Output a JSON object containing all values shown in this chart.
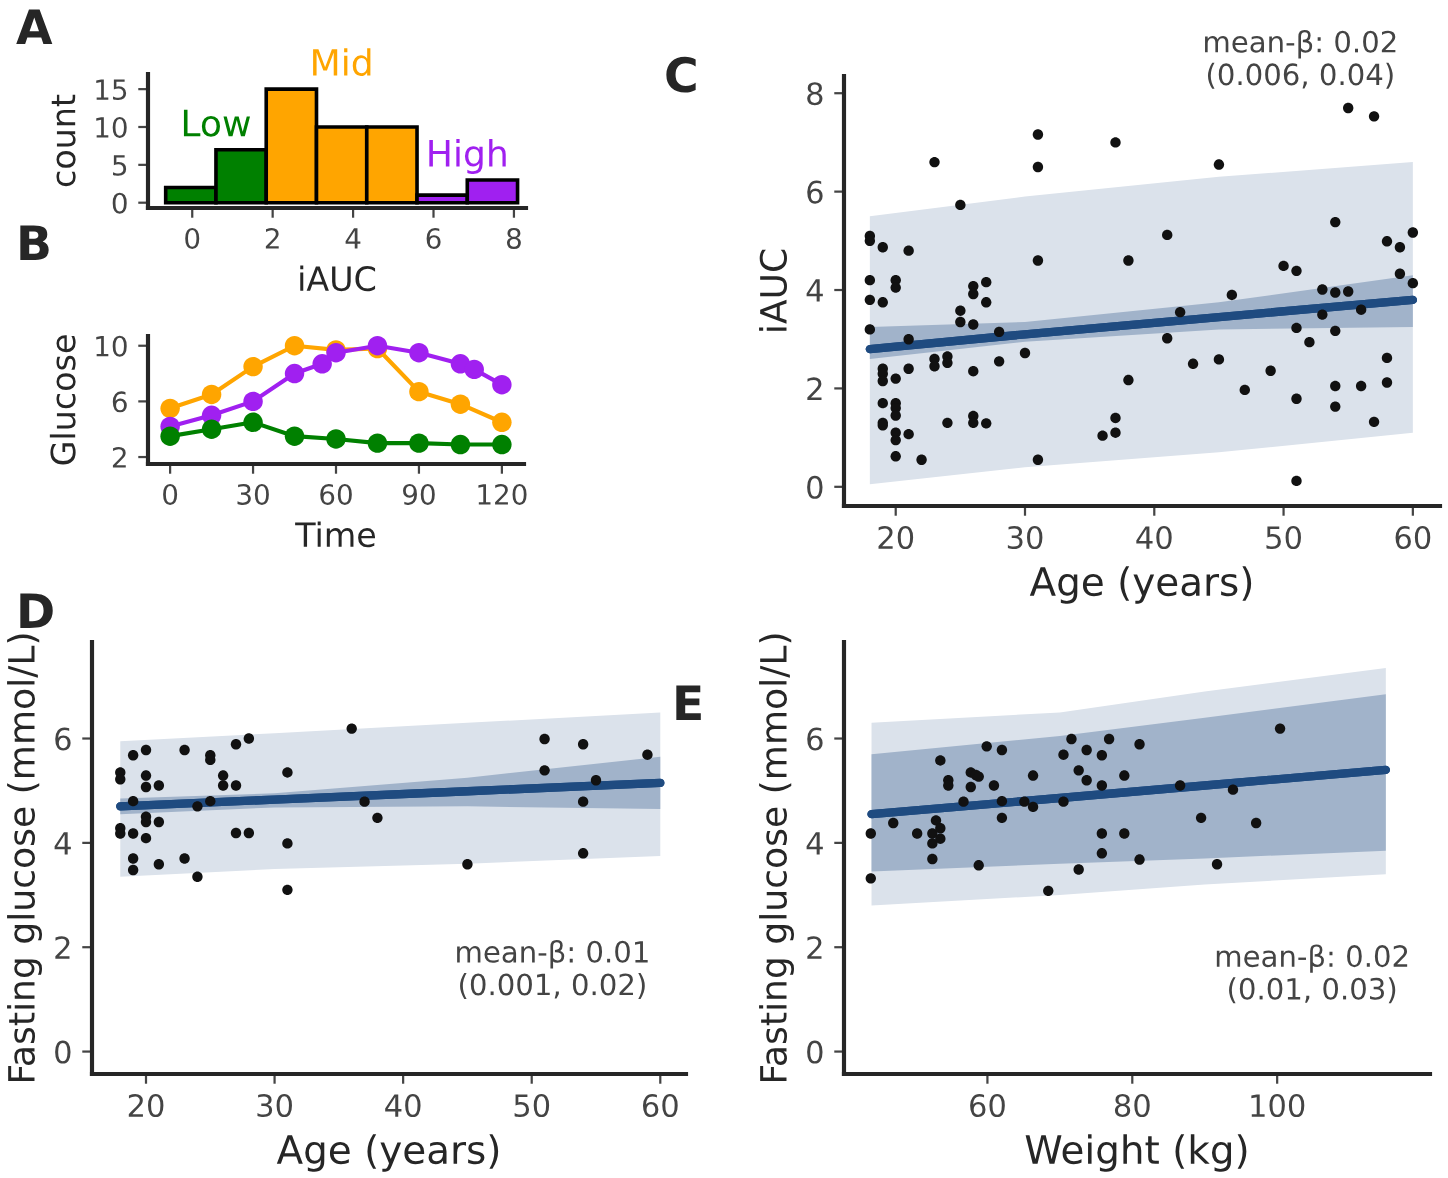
{
  "chart_data": [
    {
      "type": "histogram",
      "title": "A",
      "xlabel": "iAUC",
      "ylabel": "count",
      "bins": [
        -0.66,
        0.59,
        1.84,
        3.09,
        4.34,
        5.59,
        6.84,
        8.09
      ],
      "series": [
        {
          "name": "Low",
          "color": "#008000",
          "values": [
            2,
            7,
            null,
            null,
            null,
            null,
            null
          ]
        },
        {
          "name": "Mid",
          "color": "#FFA500",
          "values": [
            null,
            null,
            15,
            10,
            10,
            null,
            null
          ]
        },
        {
          "name": "High",
          "color": "#A020F0",
          "values": [
            null,
            null,
            null,
            null,
            null,
            1,
            3
          ]
        }
      ],
      "xlim": [
        -1.1,
        8.3
      ],
      "xticks": [
        0,
        2,
        4,
        6,
        8
      ],
      "ylim": [
        -0.7,
        17
      ],
      "yticks": [
        0,
        5,
        10,
        15
      ]
    },
    {
      "type": "line",
      "title": "B",
      "xlabel": "Time",
      "ylabel": "Glucose",
      "marker": "circle",
      "series": [
        {
          "color": "#FFA500",
          "x": [
            0,
            15,
            30,
            45,
            60,
            75,
            90,
            105,
            120
          ],
          "values": [
            5.5,
            6.5,
            8.5,
            10,
            9.7,
            9.8,
            6.7,
            5.8,
            4.5
          ]
        },
        {
          "color": "#A020F0",
          "x": [
            0,
            15,
            30,
            45,
            55,
            60,
            75,
            90,
            105,
            110,
            120
          ],
          "values": [
            4.2,
            5,
            6,
            8,
            8.7,
            9.5,
            10,
            9.5,
            8.7,
            8.3,
            7.2
          ]
        },
        {
          "color": "#008000",
          "x": [
            0,
            15,
            30,
            45,
            60,
            75,
            90,
            105,
            120
          ],
          "values": [
            3.5,
            4,
            4.5,
            3.5,
            3.3,
            3,
            3,
            2.9,
            2.9
          ]
        }
      ],
      "xlim": [
        -8,
        128
      ],
      "xticks": [
        0,
        30,
        60,
        90,
        120
      ],
      "ylim": [
        1.5,
        10.7
      ],
      "yticks": [
        2,
        6,
        10
      ]
    },
    {
      "type": "scatter",
      "title": "C",
      "xlabel": "Age (years)",
      "ylabel": "iAUC",
      "annotations": [
        "mean-β: 0.02\n(0.006, 0.04)"
      ],
      "series": [
        {
          "type": "line",
          "color": "#1f4b80",
          "x": [
            18,
            30,
            45,
            60
          ],
          "values": [
            2.8,
            3.1,
            3.45,
            3.8
          ],
          "lower": [
            0.05,
            0.4,
            0.7,
            1.1
          ],
          "upper": [
            5.5,
            5.9,
            6.3,
            6.6
          ]
        },
        {
          "type": "line",
          "color": "#1f4b80",
          "x": [
            18,
            30,
            45,
            60
          ],
          "values": [
            2.8,
            3.1,
            3.45,
            3.8
          ],
          "lower": [
            2.6,
            2.95,
            3.2,
            3.25
          ],
          "upper": [
            3.25,
            3.35,
            3.75,
            4.3
          ]
        },
        {
          "type": "scatter",
          "color": "#111111",
          "x": [
            18,
            18,
            18,
            18,
            18,
            19,
            19,
            19,
            19,
            19,
            19,
            19,
            19,
            20,
            20,
            20,
            20,
            20,
            20,
            20,
            20,
            20,
            21,
            21,
            21,
            21,
            22,
            23,
            23,
            23,
            24,
            24,
            24,
            25,
            25,
            25,
            26,
            26,
            26,
            26,
            26,
            26,
            27,
            27,
            27,
            28,
            28,
            30,
            31,
            31,
            31,
            31,
            36,
            37,
            37,
            37,
            38,
            38,
            41,
            41,
            42,
            43,
            45,
            45,
            46,
            47,
            49,
            50,
            51,
            51,
            51,
            51,
            52,
            53,
            53,
            54,
            54,
            54,
            54,
            54,
            55,
            55,
            56,
            56,
            57,
            57,
            58,
            58,
            58,
            59,
            59,
            60,
            60
          ],
          "values": [
            5.1,
            5.0,
            4.2,
            3.8,
            3.2,
            4.87,
            3.75,
            2.4,
            2.3,
            2.15,
            1.7,
            1.3,
            1.25,
            4.2,
            4.05,
            2.2,
            1.7,
            1.6,
            1.45,
            1.1,
            0.95,
            0.62,
            4.8,
            3.0,
            2.4,
            1.07,
            0.55,
            6.6,
            2.6,
            2.45,
            2.65,
            2.52,
            1.3,
            5.73,
            3.58,
            3.35,
            4.08,
            3.92,
            3.3,
            2.35,
            1.44,
            1.3,
            4.16,
            3.75,
            1.29,
            3.15,
            2.55,
            2.72,
            7.16,
            6.5,
            4.6,
            0.55,
            1.04,
            7.0,
            1.4,
            1.1,
            4.6,
            2.17,
            5.12,
            3.02,
            3.55,
            2.5,
            6.55,
            2.59,
            3.9,
            1.97,
            2.36,
            4.49,
            4.39,
            3.23,
            1.79,
            0.12,
            2.94,
            4.01,
            3.5,
            5.38,
            3.95,
            3.17,
            2.05,
            1.63,
            7.7,
            3.97,
            3.6,
            2.05,
            7.53,
            1.32,
            4.99,
            2.62,
            2.12,
            4.87,
            4.33,
            5.17,
            4.14
          ]
        }
      ],
      "xlim": [
        16,
        62.1
      ],
      "xticks": [
        20,
        30,
        40,
        50,
        60
      ],
      "ylim": [
        -0.39,
        8.35
      ],
      "yticks": [
        0,
        2,
        4,
        6,
        8
      ]
    },
    {
      "type": "scatter",
      "title": "D",
      "xlabel": "Age (years)",
      "ylabel": "Fasting glucose (mmol/L)",
      "annotations": [
        "mean-β: 0.01\n(0.001, 0.02)"
      ],
      "series": [
        {
          "type": "line",
          "color": "#1f4b80",
          "x": [
            18,
            30,
            45,
            60
          ],
          "values": [
            4.7,
            4.83,
            4.99,
            5.15
          ],
          "lower": [
            3.35,
            3.5,
            3.6,
            3.75
          ],
          "upper": [
            5.95,
            6.1,
            6.3,
            6.5
          ]
        },
        {
          "type": "line",
          "color": "#1f4b80",
          "x": [
            18,
            30,
            45,
            60
          ],
          "values": [
            4.7,
            4.83,
            4.99,
            5.15
          ],
          "lower": [
            4.55,
            4.68,
            4.7,
            4.65
          ],
          "upper": [
            4.85,
            4.95,
            5.25,
            5.65
          ]
        },
        {
          "type": "scatter",
          "color": "#111111",
          "x": [
            18,
            18,
            18,
            18,
            19,
            19,
            19,
            19,
            19,
            20,
            20,
            20,
            20,
            20,
            20,
            21,
            21,
            21,
            23,
            23,
            24,
            24,
            25,
            25,
            25,
            26,
            26,
            27,
            27,
            27,
            28,
            28,
            31,
            31,
            31,
            36,
            37,
            38,
            45,
            51,
            51,
            54,
            54,
            54,
            55,
            59
          ],
          "values": [
            5.35,
            5.22,
            4.28,
            4.18,
            5.68,
            4.8,
            4.18,
            3.7,
            3.48,
            5.78,
            5.29,
            5.07,
            4.5,
            4.4,
            4.09,
            5.1,
            4.4,
            3.59,
            5.78,
            3.7,
            4.7,
            3.35,
            5.68,
            5.59,
            4.8,
            5.29,
            5.1,
            5.89,
            5.1,
            4.19,
            6.0,
            4.19,
            5.35,
            3.99,
            3.1,
            6.19,
            4.79,
            4.48,
            3.59,
            5.99,
            5.39,
            5.89,
            4.79,
            3.8,
            5.2,
            5.69
          ]
        }
      ],
      "xlim": [
        15.8,
        62
      ],
      "xticks": [
        20,
        30,
        40,
        50,
        60
      ],
      "ylim": [
        -0.43,
        7.85
      ],
      "yticks": [
        0,
        2,
        4,
        6
      ]
    },
    {
      "type": "scatter",
      "title": "E",
      "xlabel": "Weight (kg)",
      "ylabel": "Fasting glucose (mmol/L)",
      "annotations": [
        "mean-β: 0.02\n(0.01, 0.03)"
      ],
      "series": [
        {
          "type": "scatter",
          "color": "#111111",
          "x": [
            43.9,
            43.9,
            47,
            50.3,
            52.4,
            52.4,
            52.4,
            52.9,
            53.5,
            53.5,
            53.5,
            54.6,
            54.6,
            56.7,
            57.7,
            57.7,
            58.4,
            58.8,
            58.8,
            59.9,
            60.9,
            62,
            62,
            62,
            65.1,
            66.3,
            66.3,
            68.4,
            70.5,
            70.5,
            71.6,
            72.6,
            72.6,
            73.7,
            73.7,
            75.8,
            75.8,
            75.8,
            75.8,
            76.8,
            78.9,
            78.9,
            81,
            81,
            86.6,
            89.5,
            91.7,
            93.9,
            97.1,
            100.4
          ],
          "values": [
            4.18,
            3.32,
            4.38,
            4.18,
            4.18,
            3.99,
            3.69,
            4.43,
            5.58,
            4.28,
            4.08,
            5.2,
            5.1,
            4.79,
            5.35,
            5.07,
            5.3,
            3.57,
            5.27,
            5.85,
            5.1,
            5.78,
            4.8,
            4.48,
            4.79,
            5.29,
            4.69,
            3.08,
            5.69,
            4.79,
            5.99,
            5.39,
            3.49,
            5.78,
            5.2,
            5.68,
            5.1,
            4.18,
            3.8,
            5.99,
            5.29,
            4.18,
            5.89,
            3.68,
            5.1,
            4.48,
            3.59,
            5.02,
            4.38,
            6.19
          ]
        },
        {
          "type": "line",
          "color": "#1f4b80",
          "x": [
            44,
            70,
            90,
            115
          ],
          "values": [
            4.55,
            4.86,
            5.1,
            5.4
          ],
          "lower": [
            2.8,
            3.0,
            3.2,
            3.4
          ],
          "upper": [
            6.3,
            6.5,
            6.9,
            7.35
          ]
        },
        {
          "type": "line",
          "color": "#1f4b80",
          "x": [
            44,
            70,
            90,
            115
          ],
          "values": [
            4.55,
            4.86,
            5.1,
            5.4
          ],
          "lower": [
            3.45,
            3.6,
            3.7,
            3.85
          ],
          "upper": [
            5.7,
            6.05,
            6.4,
            6.85
          ]
        }
      ],
      "xlim": [
        40.2,
        121.1
      ],
      "xticks": [
        60,
        80,
        100
      ],
      "ylim": [
        -0.43,
        7.85
      ],
      "yticks": [
        0,
        2,
        4,
        6
      ]
    }
  ]
}
